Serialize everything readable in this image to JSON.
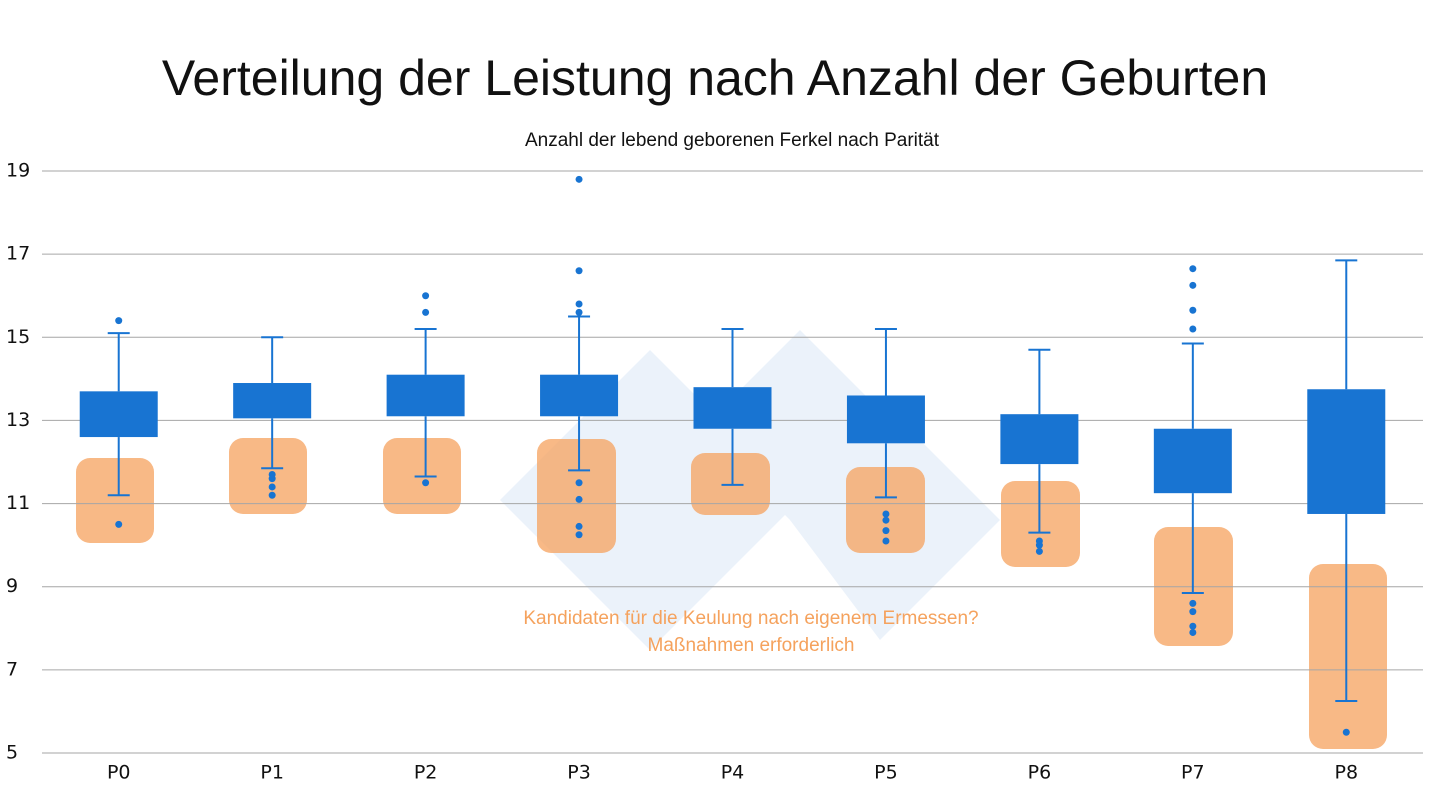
{
  "chart_data": {
    "type": "box",
    "title": "Verteilung der Leistung nach Anzahl der Geburten",
    "subtitle": "Anzahl der lebend geborenen Ferkel nach Parität",
    "annotation": [
      "Kandidaten für die Keulung nach eigenem Ermessen?",
      "Maßnahmen erforderlich"
    ],
    "categories": [
      "P0",
      "P1",
      "P2",
      "P3",
      "P4",
      "P5",
      "P6",
      "P7",
      "P8"
    ],
    "color": "#1874d2",
    "ylim": [
      5,
      19
    ],
    "yticks": [
      5,
      7,
      9,
      11,
      13,
      15,
      17,
      19
    ],
    "grid": true,
    "boxes": [
      {
        "whisker_low": 11.2,
        "q1": 12.6,
        "q3": 13.7,
        "whisker_high": 15.1,
        "outliers": [
          15.4,
          10.5
        ]
      },
      {
        "whisker_low": 11.85,
        "q1": 13.05,
        "q3": 13.9,
        "whisker_high": 15.0,
        "outliers": [
          11.7,
          11.6,
          11.4,
          11.2
        ]
      },
      {
        "whisker_low": 11.65,
        "q1": 13.1,
        "q3": 14.1,
        "whisker_high": 15.2,
        "outliers": [
          16.0,
          15.6,
          11.5
        ]
      },
      {
        "whisker_low": 11.8,
        "q1": 13.1,
        "q3": 14.1,
        "whisker_high": 15.5,
        "outliers": [
          18.8,
          16.6,
          15.8,
          15.6,
          11.5,
          11.1,
          10.45,
          10.25
        ]
      },
      {
        "whisker_low": 11.45,
        "q1": 12.8,
        "q3": 13.8,
        "whisker_high": 15.2,
        "outliers": []
      },
      {
        "whisker_low": 11.15,
        "q1": 12.45,
        "q3": 13.6,
        "whisker_high": 15.2,
        "outliers": [
          10.75,
          10.6,
          10.35,
          10.1
        ]
      },
      {
        "whisker_low": 10.3,
        "q1": 11.95,
        "q3": 13.15,
        "whisker_high": 14.7,
        "outliers": [
          10.1,
          10.0,
          9.85
        ]
      },
      {
        "whisker_low": 8.85,
        "q1": 11.25,
        "q3": 12.8,
        "whisker_high": 14.85,
        "outliers": [
          16.65,
          16.25,
          15.65,
          15.2,
          8.6,
          8.4,
          8.05,
          7.9
        ]
      },
      {
        "whisker_low": 6.25,
        "q1": 10.75,
        "q3": 13.75,
        "whisker_high": 16.85,
        "outliers": [
          5.5
        ]
      }
    ]
  }
}
